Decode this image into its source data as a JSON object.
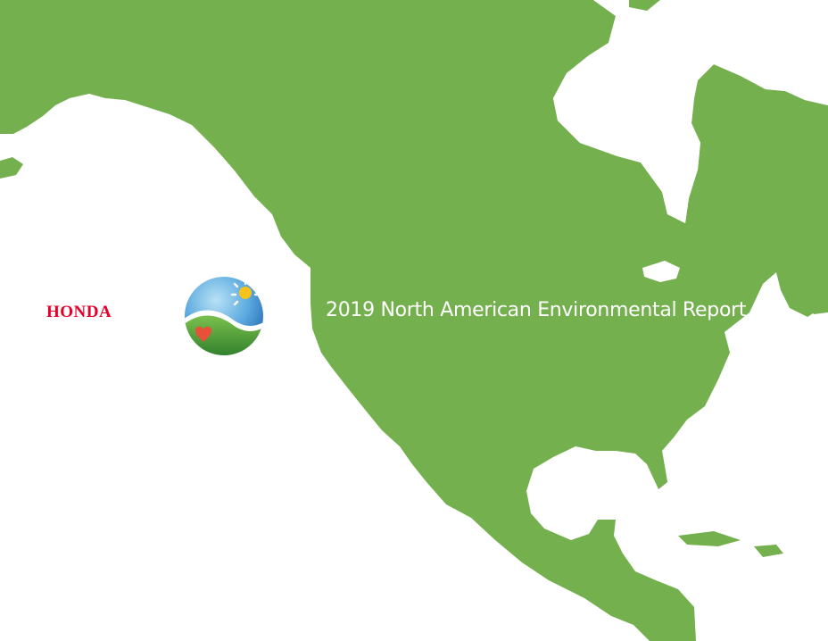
{
  "brand": {
    "name": "HONDA",
    "color": "#e4002b"
  },
  "report": {
    "title": "2019 North American Environmental Report"
  },
  "map": {
    "subject": "North America",
    "land_color": "#75b04f",
    "water_color": "#ffffff"
  },
  "emblem": {
    "icon": "earth-sun-heart-icon",
    "sky_color": "#3a8fd1",
    "hill_color": "#4f9d3a",
    "sun_color": "#f6c31c",
    "heart_color": "#e8503a"
  }
}
